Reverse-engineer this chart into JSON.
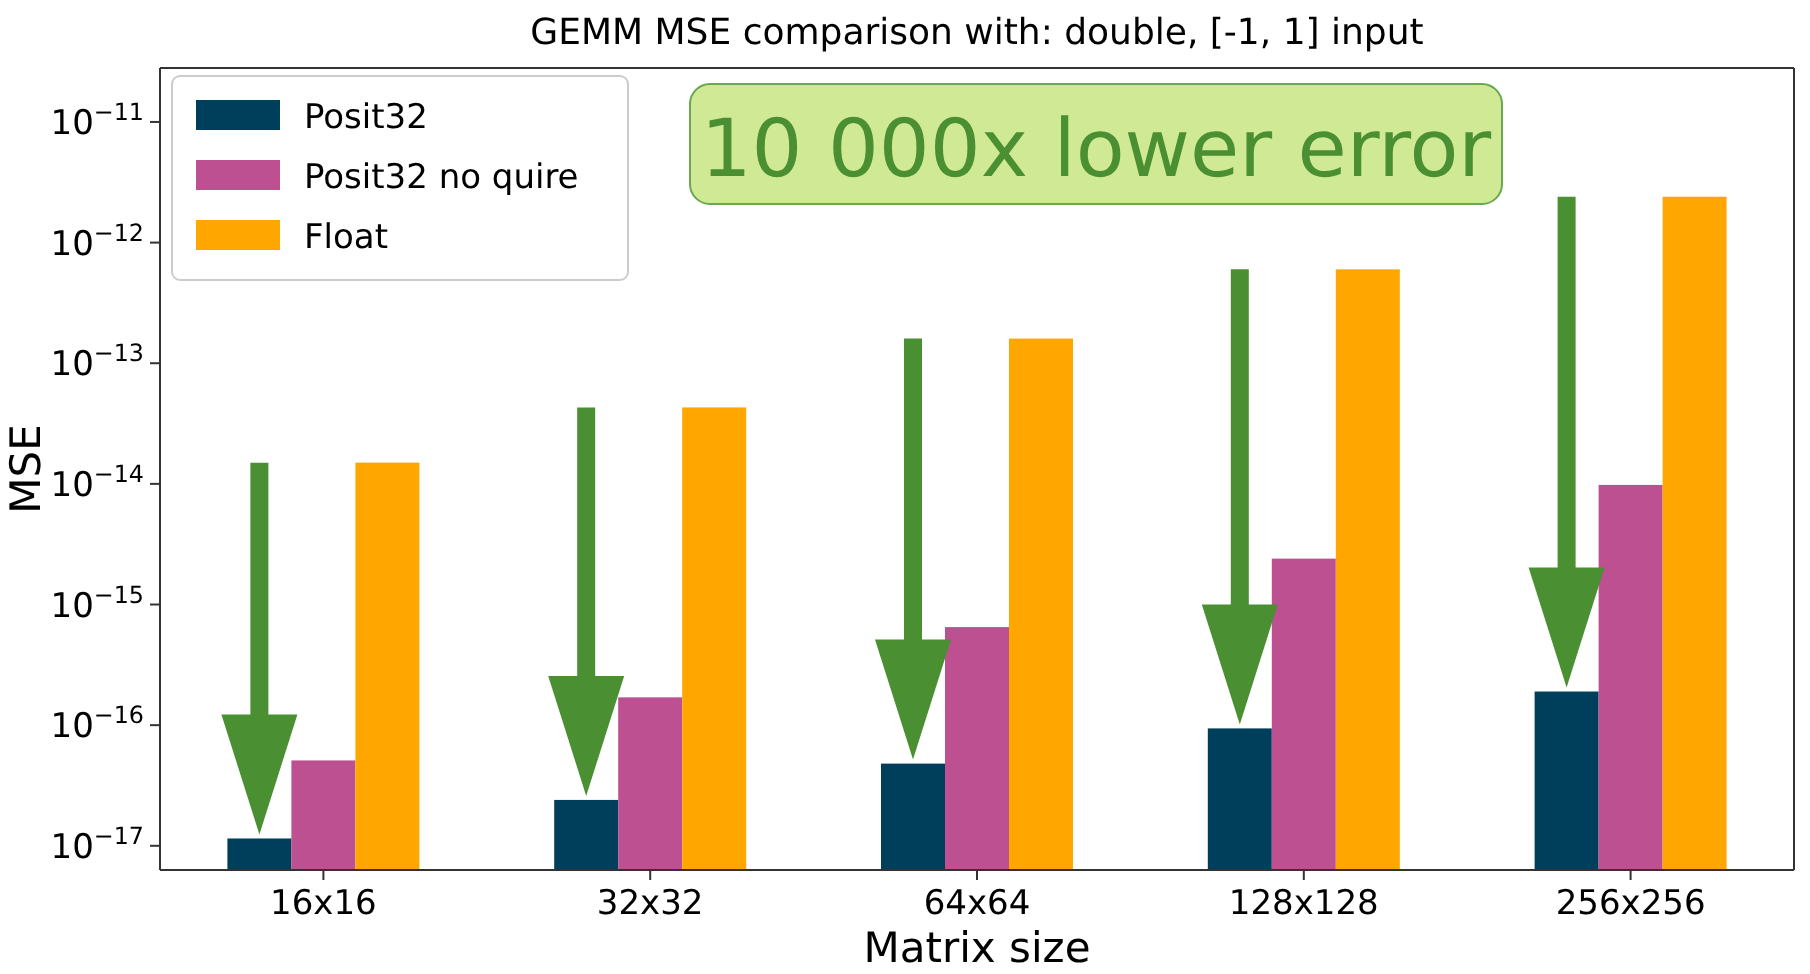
{
  "chart_data": {
    "type": "bar",
    "title": "GEMM MSE comparison with: double, [-1, 1] input",
    "xlabel": "Matrix size",
    "ylabel": "MSE",
    "log": "y",
    "legend": "top left",
    "annotations": [
      "10 000x lower error"
    ],
    "categories": [
      "16x16",
      "32x32",
      "64x64",
      "128x128",
      "256x256"
    ],
    "series": [
      {
        "name": "Posit32",
        "color": "#003f5c",
        "values": [
          1.15e-17,
          2.4e-17,
          4.8e-17,
          9.4e-17,
          1.9e-16
        ]
      },
      {
        "name": "Posit32 no quire",
        "color": "#bc5090",
        "values": [
          5.1e-17,
          1.7e-16,
          6.5e-16,
          2.4e-15,
          9.8e-15
        ]
      },
      {
        "name": "Float",
        "color": "#ffa600",
        "values": [
          1.5e-14,
          4.3e-14,
          1.6e-13,
          6e-13,
          2.4e-12
        ]
      }
    ],
    "ylim": [
      6.3e-18,
      2.8e-11
    ],
    "yticks": [
      {
        "value": 1e-17,
        "label": "10$^{−17}$"
      },
      {
        "value": 1e-16,
        "label": "10$^{−16}$"
      },
      {
        "value": 1e-15,
        "label": "10$^{−15}$"
      },
      {
        "value": 1e-14,
        "label": "10$^{−14}$"
      },
      {
        "value": 1e-13,
        "label": "10$^{−13}$"
      },
      {
        "value": 1e-12,
        "label": "10$^{−12}$"
      },
      {
        "value": 1e-11,
        "label": "10$^{−11}$"
      }
    ]
  }
}
